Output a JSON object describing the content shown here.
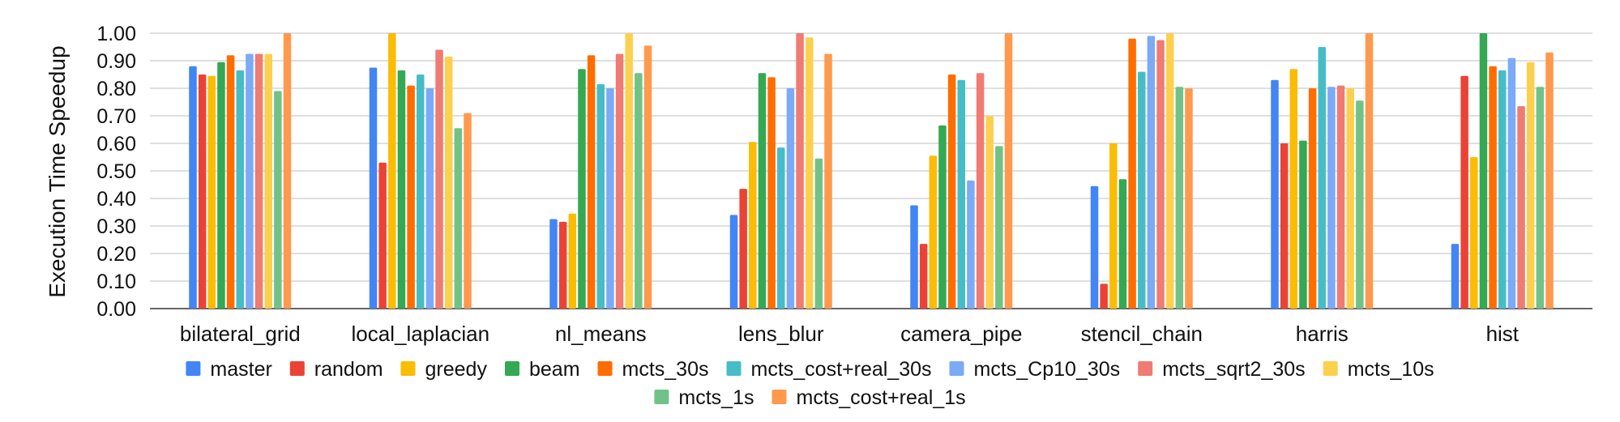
{
  "chart_data": {
    "type": "bar",
    "title": "",
    "xlabel": "",
    "ylabel": "Execution Time Speedup",
    "ylim": [
      0,
      1.0
    ],
    "y_ticks": [
      "1.00",
      "0.90",
      "0.80",
      "0.70",
      "0.60",
      "0.50",
      "0.40",
      "0.30",
      "0.20",
      "0.10",
      "0.00"
    ],
    "grid": true,
    "legend_position": "bottom",
    "categories": [
      "bilateral_grid",
      "local_laplacian",
      "nl_means",
      "lens_blur",
      "camera_pipe",
      "stencil_chain",
      "harris",
      "hist"
    ],
    "series": [
      {
        "name": "master",
        "color": "#4285f4",
        "values": [
          0.88,
          0.875,
          0.325,
          0.34,
          0.375,
          0.445,
          0.83,
          0.235
        ]
      },
      {
        "name": "random",
        "color": "#ea4335",
        "values": [
          0.85,
          0.53,
          0.315,
          0.435,
          0.235,
          0.09,
          0.6,
          0.845
        ]
      },
      {
        "name": "greedy",
        "color": "#fbbc04",
        "values": [
          0.845,
          1.0,
          0.345,
          0.605,
          0.555,
          0.6,
          0.87,
          0.55
        ]
      },
      {
        "name": "beam",
        "color": "#34a853",
        "values": [
          0.895,
          0.865,
          0.87,
          0.855,
          0.665,
          0.47,
          0.61,
          1.0
        ]
      },
      {
        "name": "mcts_30s",
        "color": "#ff6d01",
        "values": [
          0.92,
          0.81,
          0.92,
          0.84,
          0.85,
          0.98,
          0.8,
          0.88
        ]
      },
      {
        "name": "mcts_cost+real_30s",
        "color": "#46bdc6",
        "values": [
          0.865,
          0.85,
          0.815,
          0.585,
          0.83,
          0.86,
          0.95,
          0.865
        ]
      },
      {
        "name": "mcts_Cp10_30s",
        "color": "#7baaf7",
        "values": [
          0.925,
          0.8,
          0.8,
          0.8,
          0.465,
          0.99,
          0.805,
          0.91
        ]
      },
      {
        "name": "mcts_sqrt2_30s",
        "color": "#f07b72",
        "values": [
          0.925,
          0.94,
          0.925,
          1.0,
          0.855,
          0.975,
          0.81,
          0.735
        ]
      },
      {
        "name": "mcts_10s",
        "color": "#fcd04f",
        "values": [
          0.925,
          0.915,
          1.0,
          0.985,
          0.7,
          1.0,
          0.8,
          0.895
        ]
      },
      {
        "name": "mcts_1s",
        "color": "#71c287",
        "values": [
          0.79,
          0.655,
          0.855,
          0.545,
          0.59,
          0.805,
          0.755,
          0.805
        ]
      },
      {
        "name": "mcts_cost+real_1s",
        "color": "#ff994d",
        "values": [
          1.0,
          0.71,
          0.955,
          0.925,
          1.0,
          0.8,
          1.0,
          0.93
        ]
      }
    ]
  }
}
